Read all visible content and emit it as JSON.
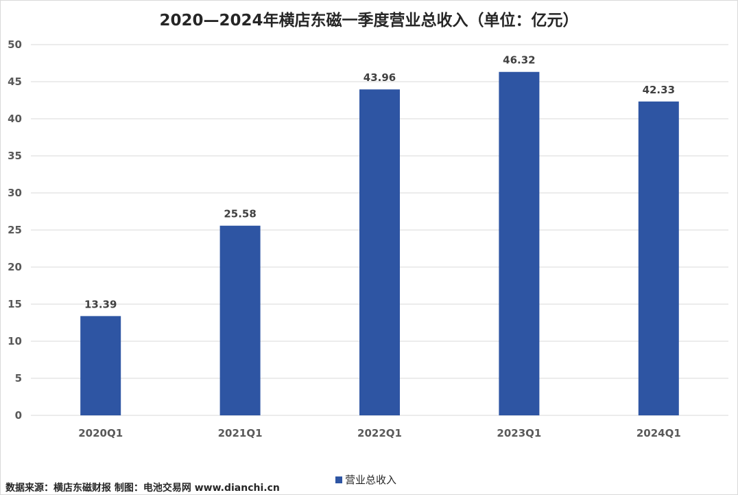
{
  "chart_data": {
    "type": "bar",
    "title": "2020—2024年横店东磁一季度营业总收入（单位：亿元）",
    "categories": [
      "2020Q1",
      "2021Q1",
      "2022Q1",
      "2023Q1",
      "2024Q1"
    ],
    "series": [
      {
        "name": "营业总收入",
        "values": [
          13.39,
          25.58,
          43.96,
          46.32,
          42.33
        ],
        "color": "#2e55a3"
      }
    ],
    "data_labels": [
      "13.39",
      "25.58",
      "43.96",
      "46.32",
      "42.33"
    ],
    "ylim": [
      0,
      50
    ],
    "yticks": [
      0,
      5,
      10,
      15,
      20,
      25,
      30,
      35,
      40,
      45,
      50
    ],
    "grid": true,
    "legend_position": "bottom"
  },
  "source_note": "数据来源：横店东磁财报  制图：电池交易网 www.dianchi.cn",
  "colors": {
    "gridline": "#d9d9d9",
    "axis_text": "#595959",
    "bar": "#2e55a3"
  }
}
